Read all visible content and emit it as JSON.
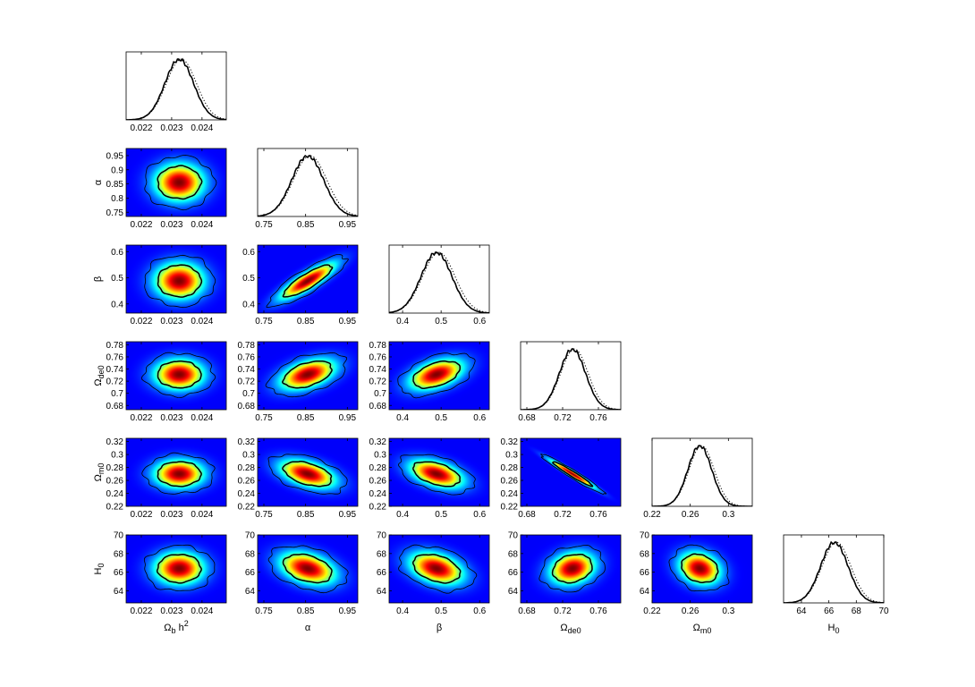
{
  "chart_data": {
    "type": "triangle-plot",
    "parameters": [
      {
        "key": "omega_b_h2",
        "label": "Ω",
        "label_sub": "b",
        "label_after": " h",
        "label_sup": "2",
        "ticks": [
          "0.022",
          "0.023",
          "0.024"
        ],
        "tick_values": [
          0.022,
          0.023,
          0.024
        ],
        "range": [
          0.0215,
          0.0248
        ],
        "mean": 0.02325,
        "sigma": 0.00047
      },
      {
        "key": "alpha",
        "label": "α",
        "ticks": [
          "0.75",
          "0.8",
          "0.85",
          "0.9",
          "0.95"
        ],
        "tick_values": [
          0.75,
          0.8,
          0.85,
          0.9,
          0.95
        ],
        "range": [
          0.735,
          0.975
        ],
        "mean": 0.855,
        "sigma": 0.038
      },
      {
        "key": "beta",
        "label": "β",
        "ticks": [
          "0.4",
          "0.5",
          "0.6"
        ],
        "tick_values": [
          0.4,
          0.5,
          0.6
        ],
        "range": [
          0.365,
          0.625
        ],
        "mean": 0.488,
        "sigma": 0.04
      },
      {
        "key": "omega_de0",
        "label": "Ω",
        "label_sub": "de0",
        "ticks": [
          "0.68",
          "0.7",
          "0.72",
          "0.74",
          "0.76",
          "0.78"
        ],
        "tick_values": [
          0.68,
          0.7,
          0.72,
          0.74,
          0.76,
          0.78
        ],
        "range": [
          0.673,
          0.785
        ],
        "mean": 0.731,
        "sigma": 0.0145
      },
      {
        "key": "omega_m0",
        "label": "Ω",
        "label_sub": "m0",
        "ticks": [
          "0.22",
          "0.24",
          "0.26",
          "0.28",
          "0.3",
          "0.32"
        ],
        "tick_values": [
          0.22,
          0.24,
          0.26,
          0.28,
          0.3,
          0.32
        ],
        "range": [
          0.22,
          0.325
        ],
        "mean": 0.27,
        "sigma": 0.0125
      },
      {
        "key": "H0",
        "label": "H",
        "label_sub": "0",
        "ticks": [
          "64",
          "66",
          "68",
          "70"
        ],
        "tick_values": [
          64,
          66,
          68,
          70
        ],
        "range": [
          62.7,
          70.0
        ],
        "mean": 66.4,
        "sigma": 1.0
      }
    ],
    "bottom_tick_overrides": {
      "alpha": [
        "0.75",
        "0.85",
        "0.95"
      ],
      "omega_de0": [
        "0.68",
        "0.72",
        "0.76"
      ],
      "omega_m0": [
        "0.22",
        "0.26",
        "0.3"
      ]
    },
    "correlations": [
      [
        1,
        0,
        0,
        0,
        0,
        0
      ],
      [
        0,
        1,
        0.85,
        0.45,
        -0.45,
        -0.35
      ],
      [
        0,
        0.85,
        1,
        0.45,
        -0.45,
        -0.35
      ],
      [
        0,
        0.45,
        0.45,
        1,
        -0.97,
        0.2
      ],
      [
        0,
        -0.45,
        -0.45,
        -0.97,
        1,
        -0.2
      ],
      [
        0,
        -0.35,
        -0.35,
        0.2,
        -0.2,
        1
      ]
    ],
    "diagonal": "1D marginalized posterior (solid) and mean likelihood (dotted)",
    "off_diagonal": "2D marginalized posterior density with 68% and 95% contours",
    "colormap": [
      "#00007f",
      "#0000ff",
      "#00ffff",
      "#ffff00",
      "#ff0000",
      "#7f0000"
    ]
  }
}
